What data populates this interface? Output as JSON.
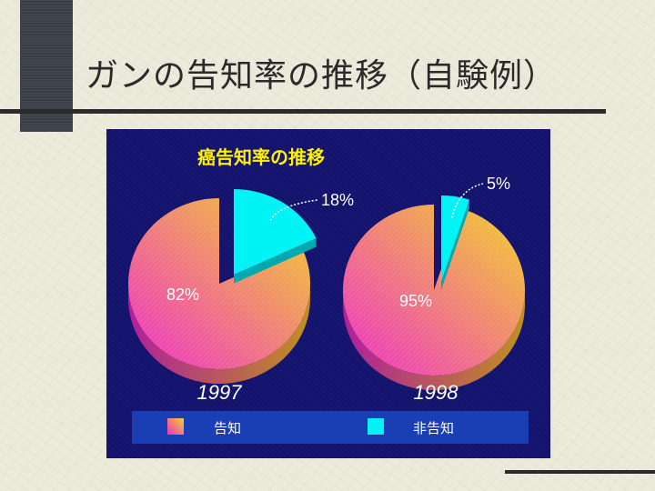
{
  "slide": {
    "title": "ガンの告知率の推移（自験例）"
  },
  "colors": {
    "disclosed_start": "#ee30c8",
    "disclosed_end": "#f2d22a",
    "not_disclosed": "#00f4f6",
    "panel_bg": "#13136e",
    "legend_bg": "#1a3fb4",
    "chart_title": "#fff200"
  },
  "chart_data": {
    "type": "pie",
    "title": "癌告知率の推移",
    "categories": [
      "告知",
      "非告知"
    ],
    "legend_position": "bottom",
    "charts": [
      {
        "label": "1997",
        "values": [
          82,
          18
        ],
        "value_labels": [
          "82%",
          "18%"
        ],
        "exploded": "非告知"
      },
      {
        "label": "1998",
        "values": [
          95,
          5
        ],
        "value_labels": [
          "95%",
          "5%"
        ],
        "exploded": "非告知"
      }
    ]
  }
}
